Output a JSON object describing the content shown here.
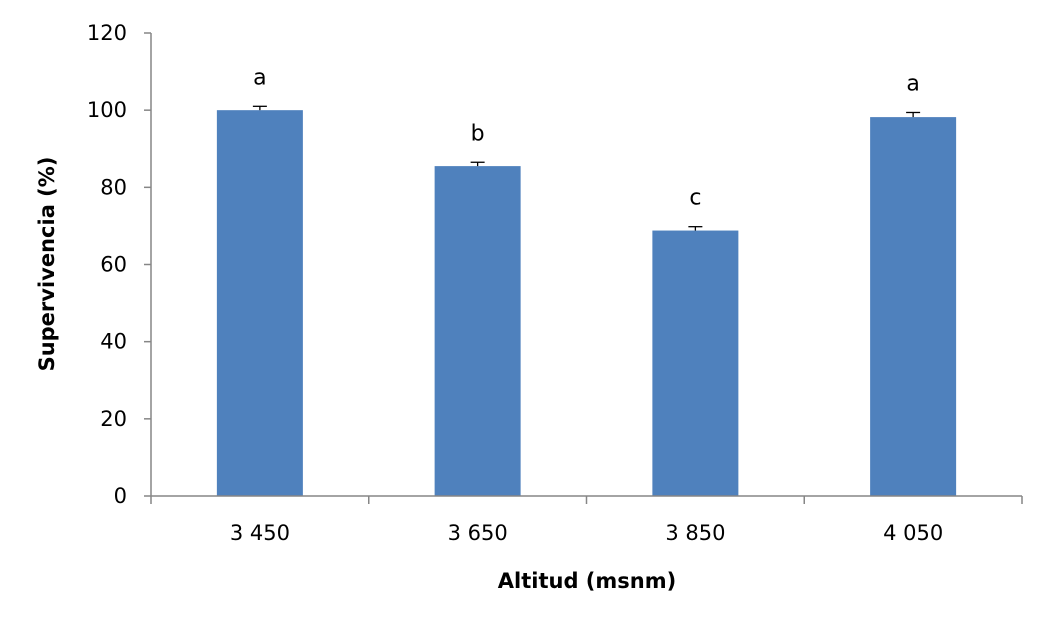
{
  "chart_data": {
    "type": "bar",
    "title": "",
    "xlabel": "Altitud (msnm)",
    "ylabel": "Supervivencia (%)",
    "categories": [
      "3 450",
      "3 650",
      "3 850",
      "4 050"
    ],
    "values": [
      100,
      85.5,
      68.8,
      98.2
    ],
    "errors": [
      1.0,
      1.0,
      1.0,
      1.2
    ],
    "annotations": [
      "a",
      "b",
      "c",
      "a"
    ],
    "ylim": [
      0,
      120
    ],
    "yticks": [
      0,
      20,
      40,
      60,
      80,
      100,
      120
    ],
    "ytick_labels": [
      "0",
      "20",
      "40",
      "60",
      "80",
      "100",
      "120"
    ],
    "bar_color": "#4f81bd",
    "grid": false,
    "legend": "none"
  }
}
